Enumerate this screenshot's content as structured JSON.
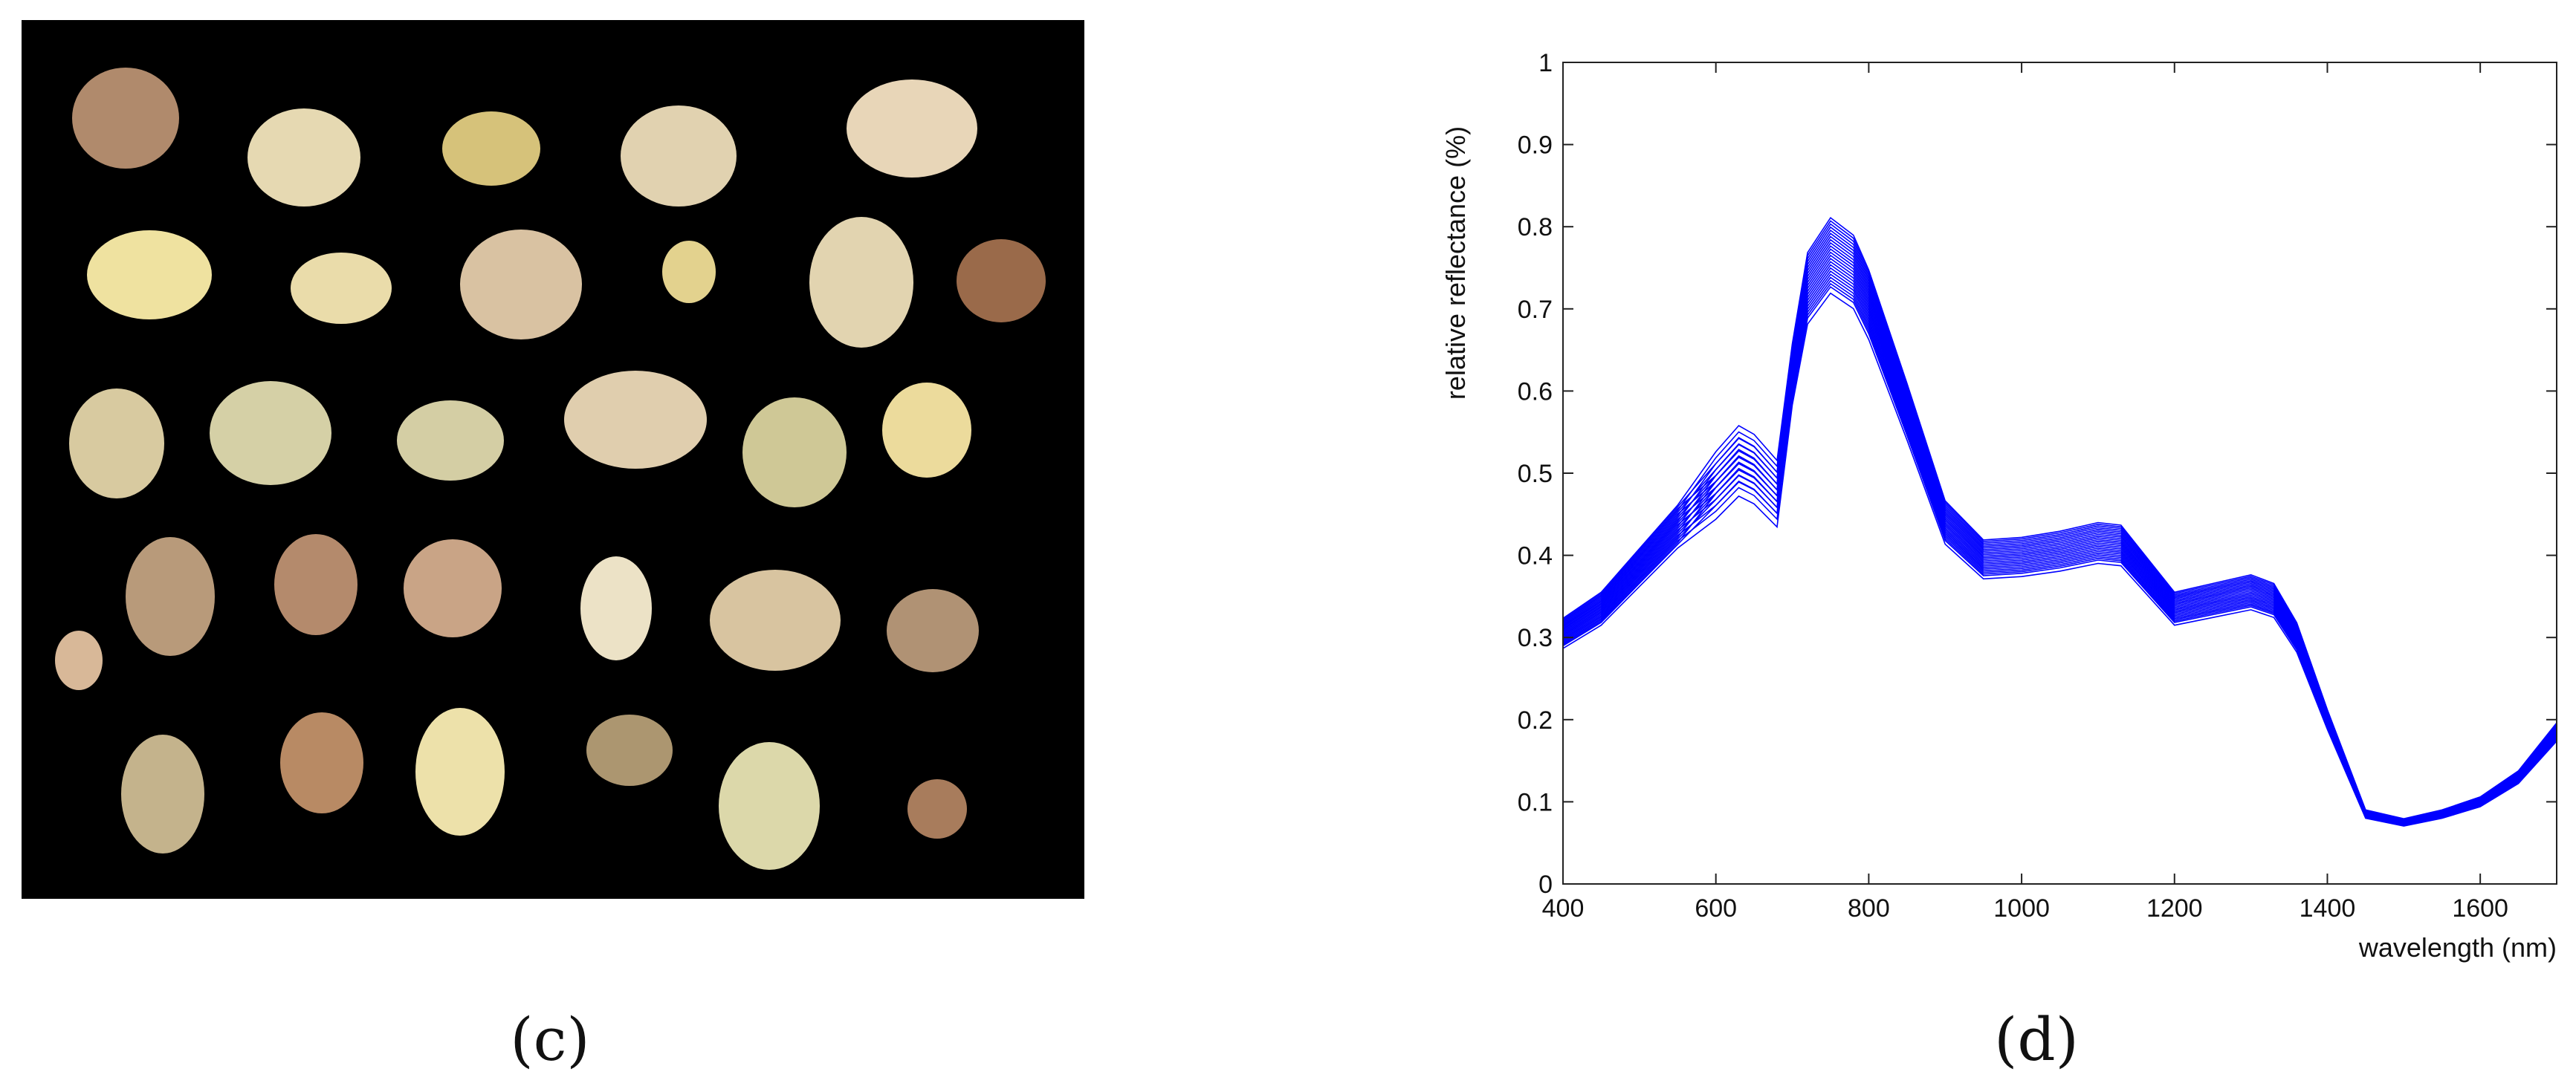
{
  "figure": {
    "panel_c": {
      "label": "(c)"
    },
    "panel_d": {
      "label": "(d)"
    }
  },
  "chart_data": {
    "type": "line",
    "xlabel": "wavelength (nm)",
    "ylabel": "relative reflectance (%)",
    "xlim": [
      400,
      1700
    ],
    "ylim": [
      0,
      1
    ],
    "xticks": [
      400,
      600,
      800,
      1000,
      1200,
      1400,
      1600
    ],
    "yticks": [
      0,
      0.1,
      0.2,
      0.3,
      0.4,
      0.5,
      0.6,
      0.7,
      0.8,
      0.9,
      1
    ],
    "grid": false,
    "line_color": "#0000ff",
    "x": [
      400,
      450,
      500,
      550,
      600,
      630,
      650,
      680,
      700,
      720,
      750,
      780,
      800,
      850,
      900,
      950,
      1000,
      1050,
      1100,
      1130,
      1150,
      1200,
      1250,
      1300,
      1330,
      1360,
      1400,
      1450,
      1500,
      1550,
      1600,
      1650,
      1700
    ],
    "base_reflectance": [
      0.305,
      0.335,
      0.385,
      0.435,
      0.485,
      0.515,
      0.505,
      0.475,
      0.62,
      0.725,
      0.765,
      0.745,
      0.705,
      0.575,
      0.44,
      0.395,
      0.398,
      0.405,
      0.415,
      0.412,
      0.39,
      0.335,
      0.345,
      0.355,
      0.345,
      0.3,
      0.2,
      0.085,
      0.075,
      0.085,
      0.1,
      0.13,
      0.185
    ],
    "series_offsets": [
      -0.06,
      -0.05,
      -0.045,
      -0.04,
      -0.035,
      -0.03,
      -0.025,
      -0.02,
      -0.015,
      -0.01,
      -0.005,
      0,
      0.005,
      0.01,
      0.015,
      0.02,
      0.025,
      0.03,
      0.035,
      0.04,
      0.045,
      0.05,
      0.055,
      0.06
    ],
    "series_count": 24
  }
}
